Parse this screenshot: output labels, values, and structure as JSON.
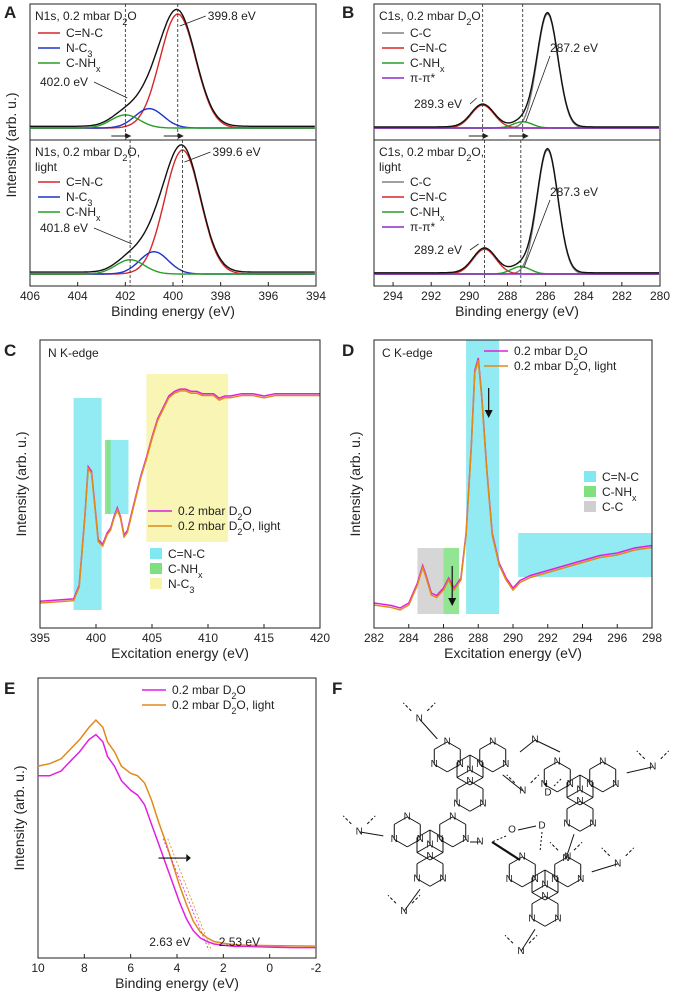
{
  "colors": {
    "red": "#d62728",
    "blue": "#1f33c8",
    "green": "#2a9d2a",
    "black": "#111111",
    "grey": "#808080",
    "purple": "#8b2fc9",
    "magenta": "#e020e0",
    "orange": "#e08a1a",
    "cyan": "#7fe8f0",
    "lightgreen": "#7fe07f",
    "yellow": "#f7f3a8",
    "lightgrey": "#cfcfcf"
  },
  "panels": {
    "A": {
      "label": "A"
    },
    "B": {
      "label": "B"
    },
    "C": {
      "label": "C"
    },
    "D": {
      "label": "D"
    },
    "E": {
      "label": "E"
    },
    "F": {
      "label": "F"
    }
  },
  "chart_data": [
    {
      "id": "A",
      "type": "line",
      "xlabel": "Binding energy (eV)",
      "ylabel": "Intensity (arb. u.)",
      "xlim": [
        406,
        394
      ],
      "xticks": [
        406,
        404,
        402,
        400,
        398,
        396,
        394
      ],
      "subpanels": [
        {
          "title_main": "N1s, 0.2 mbar D",
          "title_sub": "2",
          "title_end": "O",
          "title_line2": "",
          "legend": [
            {
              "name": "C=N-C",
              "color": "red"
            },
            {
              "name": "N-C",
              "sub": "3",
              "color": "blue"
            },
            {
              "name": "C-NH",
              "sub": "x",
              "color": "green"
            }
          ],
          "peaks": [
            {
              "name": "C=N-C",
              "center": 399.8,
              "height": 1.0,
              "width": 0.75,
              "color": "red"
            },
            {
              "name": "N-C3",
              "center": 401.0,
              "height": 0.17,
              "width": 0.6,
              "color": "blue"
            },
            {
              "name": "C-NHx",
              "center": 402.0,
              "height": 0.115,
              "width": 0.6,
              "color": "green"
            }
          ],
          "annotations": [
            {
              "text": "399.8 eV",
              "x": 399.8
            },
            {
              "text": "402.0 eV",
              "x": 402.0
            }
          ]
        },
        {
          "title_main": "N1s, 0.2 mbar D",
          "title_sub": "2",
          "title_end": "O,",
          "title_line2": "light",
          "legend": [
            {
              "name": "C=N-C",
              "color": "red"
            },
            {
              "name": "N-C",
              "sub": "3",
              "color": "blue"
            },
            {
              "name": "C-NH",
              "sub": "x",
              "color": "green"
            }
          ],
          "peaks": [
            {
              "name": "C=N-C",
              "center": 399.6,
              "height": 1.0,
              "width": 0.75,
              "color": "red"
            },
            {
              "name": "N-C3",
              "center": 400.8,
              "height": 0.18,
              "width": 0.6,
              "color": "blue"
            },
            {
              "name": "C-NHx",
              "center": 401.8,
              "height": 0.115,
              "width": 0.6,
              "color": "green"
            }
          ],
          "annotations": [
            {
              "text": "399.6 eV",
              "x": 399.6
            },
            {
              "text": "401.8 eV",
              "x": 401.8
            }
          ]
        }
      ]
    },
    {
      "id": "B",
      "type": "line",
      "xlabel": "Binding energy (eV)",
      "ylabel": "",
      "xlim": [
        295,
        280
      ],
      "xticks": [
        294,
        292,
        290,
        288,
        286,
        284,
        282,
        280
      ],
      "subpanels": [
        {
          "title_main": "C1s, 0.2 mbar D",
          "title_sub": "2",
          "title_end": "O",
          "title_line2": "",
          "legend": [
            {
              "name": "C-C",
              "color": "grey"
            },
            {
              "name": "C=N-C",
              "color": "red"
            },
            {
              "name": "C-NH",
              "sub": "x",
              "color": "green"
            },
            {
              "name": "π-π*",
              "color": "purple"
            }
          ],
          "peaks": [
            {
              "name": "C-C",
              "center": 285.9,
              "height": 1.0,
              "width": 0.55,
              "color": "grey"
            },
            {
              "name": "C=N-C",
              "center": 289.3,
              "height": 0.2,
              "width": 0.6,
              "color": "red"
            },
            {
              "name": "C-NHx",
              "center": 287.2,
              "height": 0.055,
              "width": 0.5,
              "color": "green"
            },
            {
              "name": "π-π*",
              "center": 292.5,
              "height": 0.0,
              "width": 1.0,
              "color": "purple"
            }
          ],
          "annotations": [
            {
              "text": "287.2 eV",
              "x": 287.2
            },
            {
              "text": "289.3 eV",
              "x": 289.3
            }
          ]
        },
        {
          "title_main": "C1s, 0.2 mbar D",
          "title_sub": "2",
          "title_end": "O,",
          "title_line2": "light",
          "legend": [
            {
              "name": "C-C",
              "color": "grey"
            },
            {
              "name": "C=N-C",
              "color": "red"
            },
            {
              "name": "C-NH",
              "sub": "x",
              "color": "green"
            },
            {
              "name": "π-π*",
              "color": "purple"
            }
          ],
          "peaks": [
            {
              "name": "C-C",
              "center": 285.9,
              "height": 1.0,
              "width": 0.55,
              "color": "grey"
            },
            {
              "name": "C=N-C",
              "center": 289.2,
              "height": 0.2,
              "width": 0.6,
              "color": "red"
            },
            {
              "name": "C-NHx",
              "center": 287.3,
              "height": 0.06,
              "width": 0.5,
              "color": "green"
            },
            {
              "name": "π-π*",
              "center": 292.5,
              "height": 0.0,
              "width": 1.0,
              "color": "purple"
            }
          ],
          "annotations": [
            {
              "text": "287.3 eV",
              "x": 287.3
            },
            {
              "text": "289.2 eV",
              "x": 289.2
            }
          ]
        }
      ]
    },
    {
      "id": "C",
      "type": "line",
      "title": "N K-edge",
      "xlabel": "Excitation energy (eV)",
      "ylabel": "Intensity (arb. u.)",
      "xlim": [
        395,
        420
      ],
      "xticks": [
        395,
        400,
        405,
        410,
        415,
        420
      ],
      "legend": [
        {
          "name": "0.2 mbar D",
          "sub": "2",
          "end": "O",
          "color": "magenta"
        },
        {
          "name": "0.2 mbar D",
          "sub": "2",
          "end": "O, light",
          "color": "orange"
        }
      ],
      "regions": [
        {
          "name": "C=N-C",
          "from": 398.0,
          "to": 400.5,
          "color": "cyan"
        },
        {
          "name": "C=N-C",
          "from": 401.0,
          "to": 402.9,
          "color": "cyan"
        },
        {
          "name": "C-NHx",
          "from": 400.8,
          "to": 401.3,
          "color": "lightgreen"
        },
        {
          "name": "N-C3",
          "from": 404.5,
          "to": 411.8,
          "color": "yellow"
        }
      ],
      "region_legend": [
        {
          "name": "C=N-C",
          "color": "cyan"
        },
        {
          "name": "C-NH",
          "sub": "x",
          "color": "lightgreen"
        },
        {
          "name": "N-C",
          "sub": "3",
          "color": "yellow"
        }
      ],
      "spectrum": {
        "x": [
          395,
          398,
          398.5,
          399,
          399.3,
          399.6,
          399.9,
          400.2,
          400.6,
          401,
          401.3,
          401.6,
          401.9,
          402.2,
          402.5,
          402.8,
          403.2,
          403.6,
          404,
          404.5,
          405,
          405.5,
          406,
          406.5,
          407,
          407.5,
          408,
          408.5,
          409,
          409.5,
          410,
          410.5,
          411,
          411.5,
          412,
          413,
          414,
          415,
          416,
          417,
          418,
          419,
          420
        ],
        "y": [
          0.03,
          0.04,
          0.1,
          0.4,
          0.62,
          0.6,
          0.45,
          0.3,
          0.28,
          0.33,
          0.35,
          0.4,
          0.44,
          0.4,
          0.32,
          0.34,
          0.42,
          0.5,
          0.58,
          0.66,
          0.75,
          0.83,
          0.88,
          0.93,
          0.95,
          0.96,
          0.96,
          0.95,
          0.95,
          0.94,
          0.94,
          0.94,
          0.92,
          0.93,
          0.93,
          0.94,
          0.94,
          0.93,
          0.94,
          0.94,
          0.94,
          0.94,
          0.94
        ]
      }
    },
    {
      "id": "D",
      "type": "line",
      "title": "C K-edge",
      "xlabel": "Excitation energy (eV)",
      "ylabel": "Intensity (arb. u.)",
      "xlim": [
        282,
        298
      ],
      "xticks": [
        282,
        284,
        286,
        288,
        290,
        292,
        294,
        296,
        298
      ],
      "legend": [
        {
          "name": "0.2 mbar D",
          "sub": "2",
          "end": "O",
          "color": "magenta"
        },
        {
          "name": "0.2 mbar D",
          "sub": "2",
          "end": "O, light",
          "color": "orange"
        }
      ],
      "regions": [
        {
          "name": "C-C",
          "from": 284.5,
          "to": 286.0,
          "color": "lightgrey"
        },
        {
          "name": "C-NHx",
          "from": 286.0,
          "to": 286.9,
          "color": "lightgreen"
        },
        {
          "name": "C=N-C",
          "from": 287.3,
          "to": 289.2,
          "color": "cyan"
        },
        {
          "name": "C=N-C",
          "from": 290.3,
          "to": 298.0,
          "color": "cyan"
        }
      ],
      "region_legend": [
        {
          "name": "C=N-C",
          "color": "cyan"
        },
        {
          "name": "C-NH",
          "sub": "x",
          "color": "lightgreen"
        },
        {
          "name": "C-C",
          "color": "lightgrey"
        }
      ],
      "spectrum": {
        "x": [
          282,
          283,
          283.5,
          284,
          284.5,
          284.8,
          285,
          285.3,
          285.6,
          286,
          286.3,
          286.6,
          287,
          287.3,
          287.6,
          287.8,
          288,
          288.2,
          288.5,
          288.8,
          289.2,
          289.6,
          290,
          290.4,
          291,
          292,
          293,
          294,
          295,
          296,
          297,
          298
        ],
        "y": [
          0.02,
          0.01,
          0.0,
          0.02,
          0.1,
          0.17,
          0.13,
          0.06,
          0.05,
          0.08,
          0.12,
          0.08,
          0.12,
          0.3,
          0.65,
          0.95,
          1.0,
          0.85,
          0.55,
          0.3,
          0.18,
          0.12,
          0.08,
          0.11,
          0.13,
          0.15,
          0.17,
          0.19,
          0.21,
          0.22,
          0.24,
          0.25
        ]
      },
      "arrows": [
        {
          "x": 288.6,
          "dir": "down"
        },
        {
          "x": 286.5,
          "dir": "down"
        }
      ]
    },
    {
      "id": "E",
      "type": "line",
      "xlabel": "Binding energy (eV)",
      "ylabel": "Intensity (arb. u.)",
      "xlim": [
        10,
        -2
      ],
      "xticks": [
        10,
        8,
        6,
        4,
        2,
        0,
        -2
      ],
      "legend": [
        {
          "name": "0.2 mbar D",
          "sub": "2",
          "end": "O",
          "color": "magenta"
        },
        {
          "name": "0.2 mbar D",
          "sub": "2",
          "end": "O, light",
          "color": "orange"
        }
      ],
      "series": [
        {
          "name": "0.2 mbar D2O",
          "color": "magenta",
          "x": [
            10,
            9.5,
            9,
            8.6,
            8.2,
            7.8,
            7.5,
            7.2,
            7,
            6.7,
            6.4,
            6,
            5.7,
            5.4,
            5.1,
            4.8,
            4.5,
            4.2,
            3.9,
            3.6,
            3.3,
            3,
            2.7,
            2.4,
            2,
            1.5,
            1,
            0,
            -1,
            -2
          ],
          "y": [
            0.72,
            0.72,
            0.74,
            0.78,
            0.82,
            0.87,
            0.89,
            0.86,
            0.8,
            0.76,
            0.7,
            0.66,
            0.64,
            0.6,
            0.52,
            0.44,
            0.36,
            0.28,
            0.2,
            0.13,
            0.08,
            0.05,
            0.035,
            0.025,
            0.02,
            0.015,
            0.015,
            0.012,
            0.01,
            0.01
          ]
        },
        {
          "name": "0.2 mbar D2O, light",
          "color": "orange",
          "x": [
            10,
            9.5,
            9,
            8.6,
            8.2,
            7.8,
            7.5,
            7.2,
            7,
            6.7,
            6.4,
            6,
            5.7,
            5.4,
            5.1,
            4.8,
            4.5,
            4.2,
            3.9,
            3.6,
            3.3,
            3,
            2.7,
            2.4,
            2,
            1.5,
            1,
            0,
            -1,
            -2
          ],
          "y": [
            0.76,
            0.77,
            0.79,
            0.83,
            0.87,
            0.92,
            0.95,
            0.92,
            0.86,
            0.82,
            0.76,
            0.73,
            0.72,
            0.69,
            0.62,
            0.53,
            0.45,
            0.36,
            0.27,
            0.19,
            0.12,
            0.075,
            0.05,
            0.035,
            0.028,
            0.022,
            0.02,
            0.018,
            0.017,
            0.016
          ]
        }
      ],
      "annotations": [
        {
          "text": "2.63 eV",
          "x": 2.63,
          "color": "magenta"
        },
        {
          "text": "2.53 eV",
          "x": 2.53,
          "color": "orange"
        }
      ]
    }
  ],
  "structure": {
    "N": "N",
    "D": "D",
    "O": "O"
  }
}
